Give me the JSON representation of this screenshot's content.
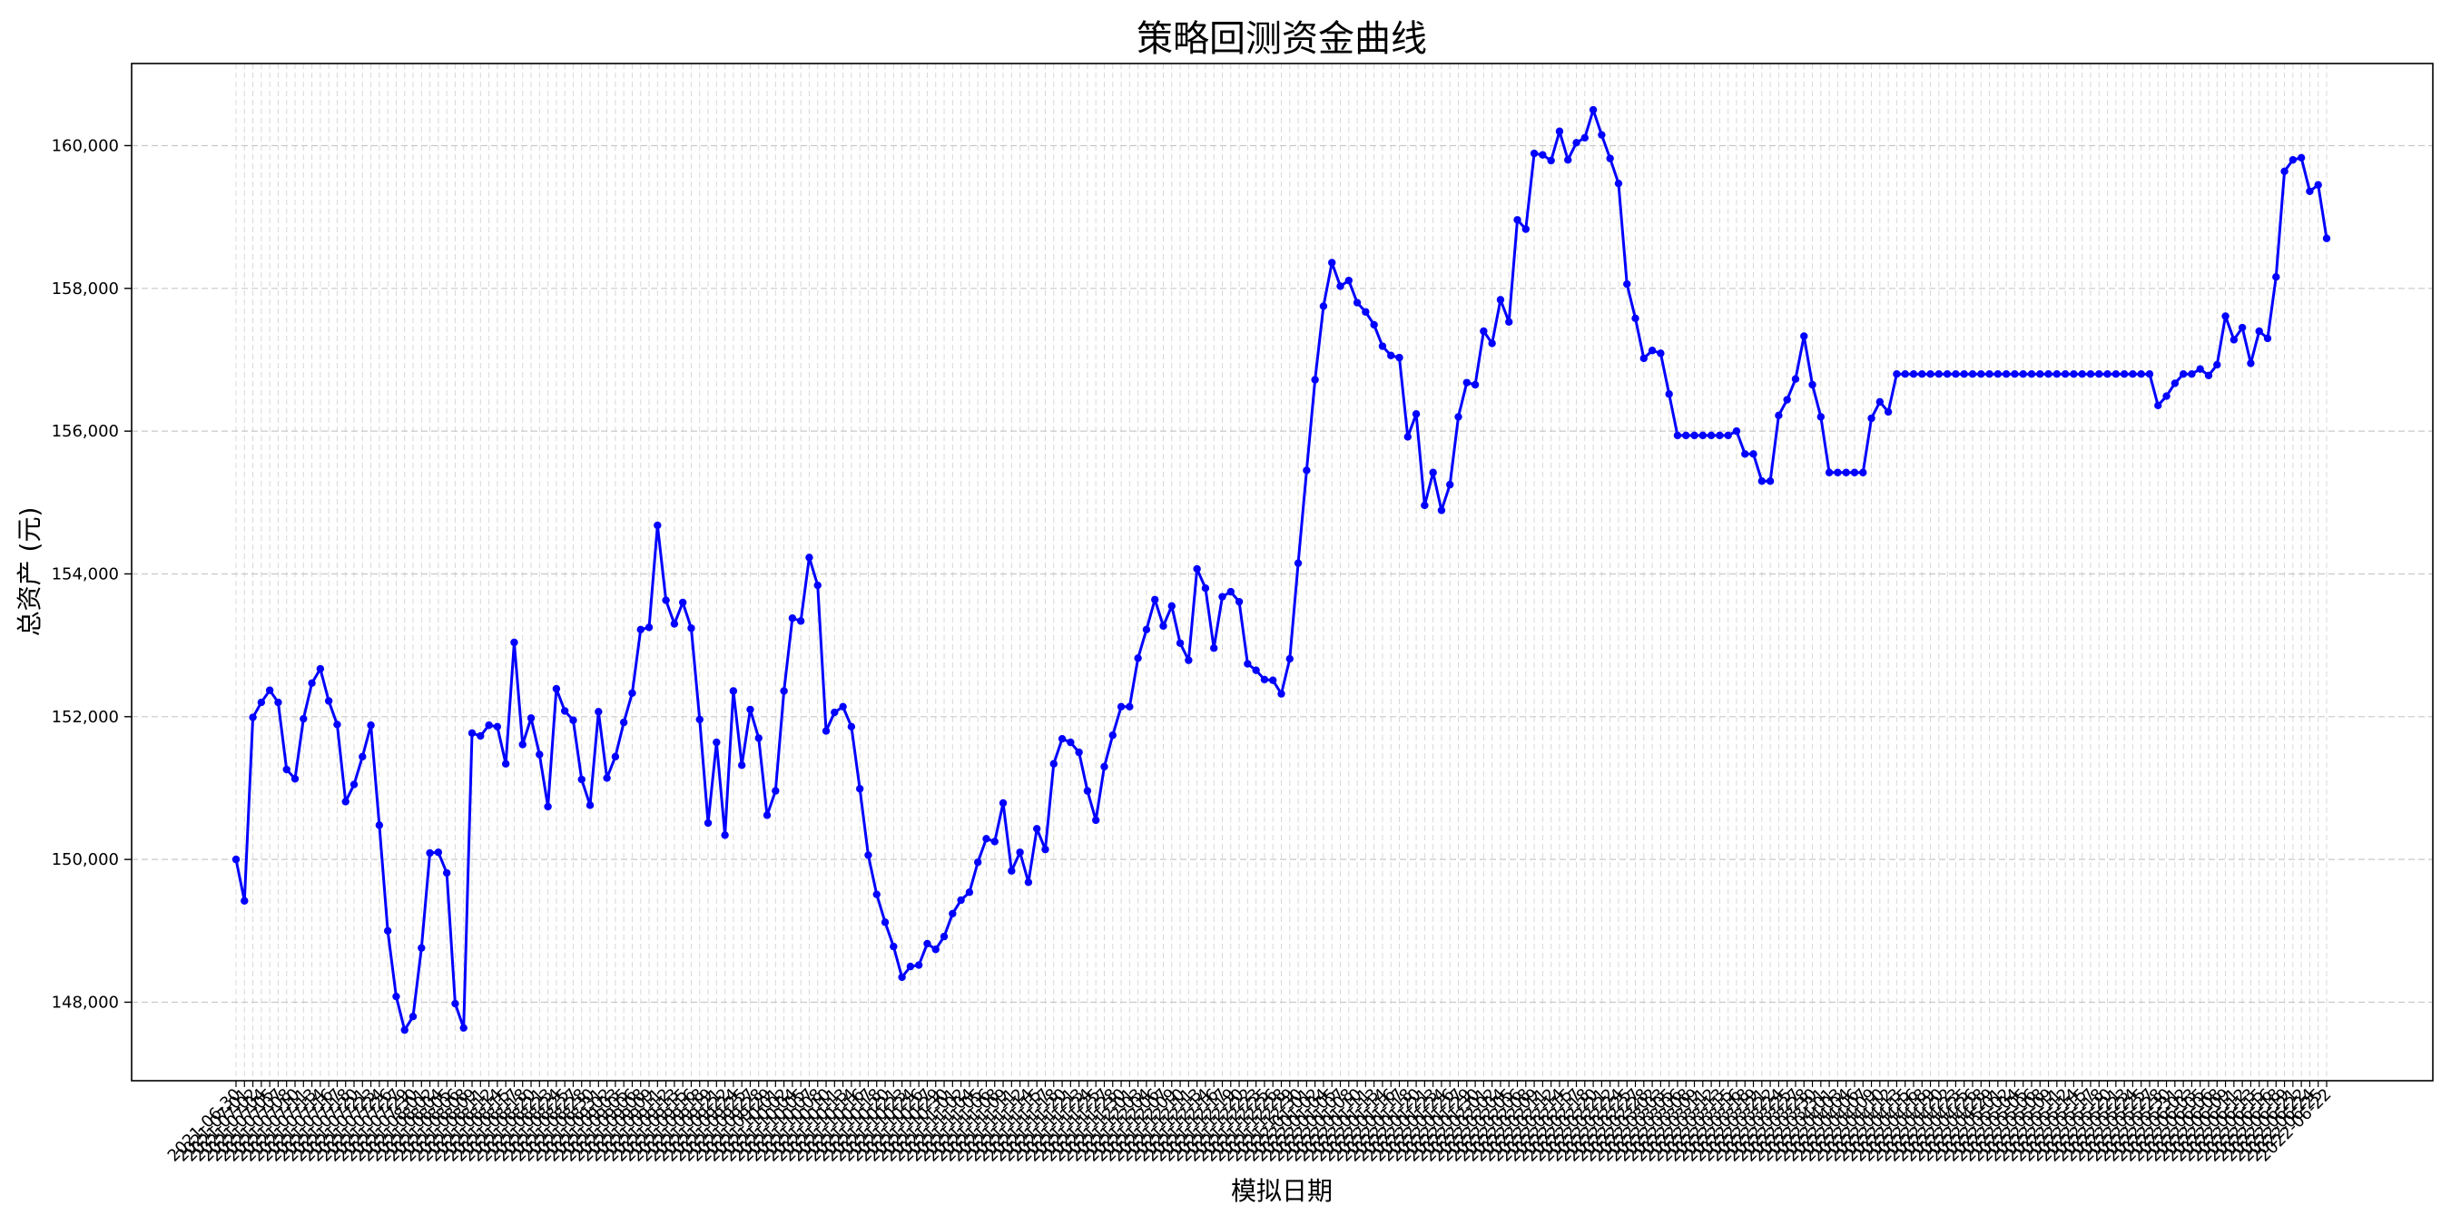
{
  "chart_data": {
    "type": "line",
    "title": "策略回测资金曲线",
    "xlabel": "模拟日期",
    "ylabel": "总资产 (元)",
    "ylim": [
      146900,
      161150
    ],
    "yticks": [
      148000,
      150000,
      152000,
      154000,
      156000,
      158000,
      160000
    ],
    "ytick_labels": [
      "148,000",
      "150,000",
      "152,000",
      "154,000",
      "156,000",
      "158,000",
      "160,000"
    ],
    "grid": true,
    "legend": "none",
    "marker": "circle",
    "line_color": "#0000ff",
    "x_first_label": "2021-06-30",
    "x_last_label": "2022-06-22",
    "series": [
      {
        "values": [
          150000,
          149420,
          151990,
          152200,
          152370,
          152200,
          151260,
          151130,
          151970,
          152470,
          152670,
          152220,
          151890,
          150810,
          151050,
          151440,
          151880,
          150480,
          149000,
          148080,
          147610,
          147800,
          148760,
          150090,
          150100,
          149810,
          147980,
          147640,
          151770,
          151730,
          151880,
          151860,
          151340,
          153040,
          151610,
          151980,
          151470,
          150740,
          152390,
          152080,
          151950,
          151120,
          150760,
          152070,
          151140,
          151440,
          151920,
          152330,
          153220,
          153250,
          154680,
          153630,
          153300,
          153600,
          153240,
          151960,
          150510,
          151640,
          150340,
          152360,
          151320,
          152100,
          151700,
          150620,
          150960,
          152360,
          153380,
          153340,
          154230,
          153840,
          151800,
          152060,
          152140,
          151860,
          150990,
          150060,
          149510,
          149120,
          148780,
          148350,
          148500,
          148520,
          148820,
          148740,
          148920,
          149240,
          149430,
          149540,
          149960,
          150290,
          150250,
          150790,
          149840,
          150100,
          149680,
          150430,
          150140,
          151340,
          151690,
          151640,
          151500,
          150960,
          150550,
          151300,
          151740,
          152140,
          152140,
          152820,
          153220,
          153640,
          153270,
          153550,
          153030,
          152790,
          154070,
          153800,
          152960,
          153680,
          153750,
          153610,
          152740,
          152650,
          152520,
          152510,
          152320,
          152810,
          154150,
          155450,
          156720,
          157750,
          158360,
          158030,
          158110,
          157800,
          157670,
          157490,
          157190,
          157060,
          157030,
          155920,
          156240,
          154960,
          155420,
          154890,
          155250,
          156200,
          156680,
          156650,
          157400,
          157230,
          157840,
          157530,
          158960,
          158830,
          159890,
          159870,
          159790,
          160200,
          159800,
          160040,
          160110,
          160500,
          160150,
          159820,
          159470,
          158060,
          157580,
          157020,
          157130,
          157090,
          156520,
          155940,
          155940,
          155940,
          155940,
          155940,
          155940,
          155940,
          156000,
          155680,
          155680,
          155300,
          155300,
          156220,
          156440,
          156730,
          157330,
          156650,
          156200,
          155420,
          155420,
          155420,
          155420,
          155420,
          156180,
          156410,
          156270,
          156800,
          156800,
          156800,
          156800,
          156800,
          156800,
          156800,
          156800,
          156800,
          156800,
          156800,
          156800,
          156800,
          156800,
          156800,
          156800,
          156800,
          156800,
          156800,
          156800,
          156800,
          156800,
          156800,
          156800,
          156800,
          156800,
          156800,
          156800,
          156800,
          156800,
          156800,
          156360,
          156490,
          156670,
          156800,
          156800,
          156870,
          156780,
          156930,
          157610,
          157280,
          157450,
          156950,
          157400,
          157300,
          158160,
          159640,
          159800,
          159830,
          159360,
          159450,
          158700
        ]
      }
    ]
  }
}
